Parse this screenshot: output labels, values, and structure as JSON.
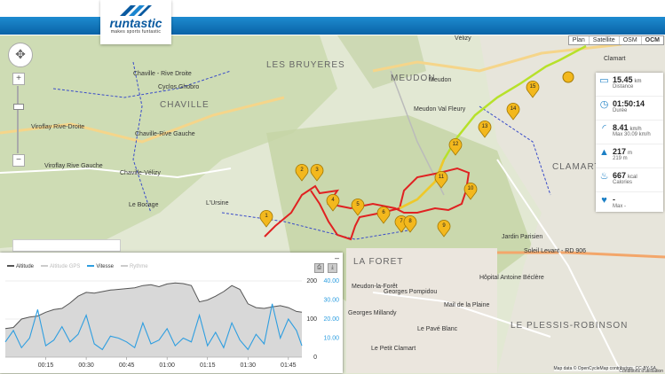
{
  "brand": {
    "name": "runtastic",
    "tagline": "makes sports funtastic"
  },
  "map": {
    "types": [
      "Plan",
      "Satellite",
      "OSM",
      "OCM"
    ],
    "selected_type": "OCM",
    "places": [
      {
        "name": "LES BRUYERES",
        "big": true
      },
      {
        "name": "MEUDON",
        "big": true
      },
      {
        "name": "CHAVILLE",
        "big": true
      },
      {
        "name": "CLAMART",
        "big": true
      },
      {
        "name": "LA FORET",
        "big": true
      },
      {
        "name": "LE PLESSIS-ROBINSON",
        "big": true
      },
      {
        "name": "Chaville - Rive Droite",
        "big": false
      },
      {
        "name": "Cyclos Ghobro",
        "big": false
      },
      {
        "name": "Chaville-Rive Gauche",
        "big": false
      },
      {
        "name": "Viroflay Rive-Droite",
        "big": false
      },
      {
        "name": "Viroflay Rive Gauche",
        "big": false
      },
      {
        "name": "Chaville-Vélizy",
        "big": false
      },
      {
        "name": "Le Bocage",
        "big": false
      },
      {
        "name": "L'Ursine",
        "big": false
      },
      {
        "name": "Meudon",
        "big": false
      },
      {
        "name": "Meudon Val Fleury",
        "big": false
      },
      {
        "name": "Clamart",
        "big": false
      },
      {
        "name": "Jardin Parisien",
        "big": false
      },
      {
        "name": "Soleil Levant - RD 906",
        "big": false
      },
      {
        "name": "Hôpital Antoine Béclère",
        "big": false
      },
      {
        "name": "Georges Pompidou",
        "big": false
      },
      {
        "name": "Mail de la Plaine",
        "big": false
      },
      {
        "name": "Georges Millandy",
        "big": false
      },
      {
        "name": "Le Pavé Blanc",
        "big": false
      },
      {
        "name": "Le Petit Clamart",
        "big": false
      },
      {
        "name": "Vélizy",
        "big": false
      },
      {
        "name": "Meudon-la-Forêt",
        "big": false
      }
    ],
    "markers": [
      "1",
      "2",
      "3",
      "4",
      "5",
      "6",
      "7",
      "8",
      "9",
      "10",
      "11",
      "12",
      "13",
      "14",
      "15"
    ],
    "attribution": "Map data © OpenCycleMap contributors, CC-BY-SA",
    "terms": "Conditions d'utilisation"
  },
  "stats": [
    {
      "icon": "distance-icon",
      "value": "15.45",
      "unit": "km",
      "label": "Distance",
      "sub": ""
    },
    {
      "icon": "clock-icon",
      "value": "01:50:14",
      "unit": "",
      "label": "Durée",
      "sub": ""
    },
    {
      "icon": "speed-icon",
      "value": "8.41",
      "unit": "km/h",
      "label": "Max 30.09 km/h",
      "sub": ""
    },
    {
      "icon": "elevation-icon",
      "value": "217",
      "unit": "m",
      "label": "219 m",
      "sub": ""
    },
    {
      "icon": "calories-icon",
      "value": "667",
      "unit": "kcal",
      "label": "Calories",
      "sub": ""
    },
    {
      "icon": "heart-icon",
      "value": "-",
      "unit": "",
      "label": "Max -",
      "sub": ""
    }
  ],
  "chart_data": {
    "type": "area",
    "legend": [
      "Altitude",
      "Altitude GPS",
      "Vitesse",
      "Rythme"
    ],
    "series_colors": {
      "Altitude": "#555555",
      "Altitude GPS": "#cccccc",
      "Vitesse": "#2e9ee0",
      "Rythme": "#cccccc"
    },
    "x_ticks": [
      "00:15",
      "00:30",
      "00:45",
      "01:00",
      "01:15",
      "01:30",
      "01:45"
    ],
    "y_left_ticks": [
      "200",
      "100",
      "0"
    ],
    "y_right_ticks": [
      "40.00",
      "30.00",
      "20.00",
      "10.00"
    ],
    "x_minutes": [
      0,
      3,
      6,
      9,
      12,
      15,
      18,
      21,
      24,
      27,
      30,
      33,
      36,
      39,
      42,
      45,
      48,
      51,
      54,
      57,
      60,
      63,
      66,
      69,
      72,
      75,
      78,
      81,
      84,
      87,
      90,
      93,
      96,
      99,
      102,
      105,
      108,
      110
    ],
    "altitude": [
      75,
      78,
      100,
      105,
      108,
      118,
      125,
      128,
      142,
      160,
      170,
      168,
      172,
      176,
      178,
      180,
      182,
      188,
      190,
      185,
      192,
      195,
      193,
      188,
      145,
      150,
      160,
      172,
      188,
      178,
      140,
      130,
      128,
      132,
      135,
      130,
      120,
      118
    ],
    "speed": [
      8,
      14,
      5,
      10,
      25,
      6,
      9,
      16,
      8,
      12,
      22,
      7,
      4,
      11,
      10,
      8,
      5,
      18,
      7,
      9,
      15,
      6,
      10,
      8,
      22,
      6,
      13,
      5,
      18,
      9,
      4,
      12,
      7,
      28,
      10,
      20,
      14,
      6
    ]
  }
}
